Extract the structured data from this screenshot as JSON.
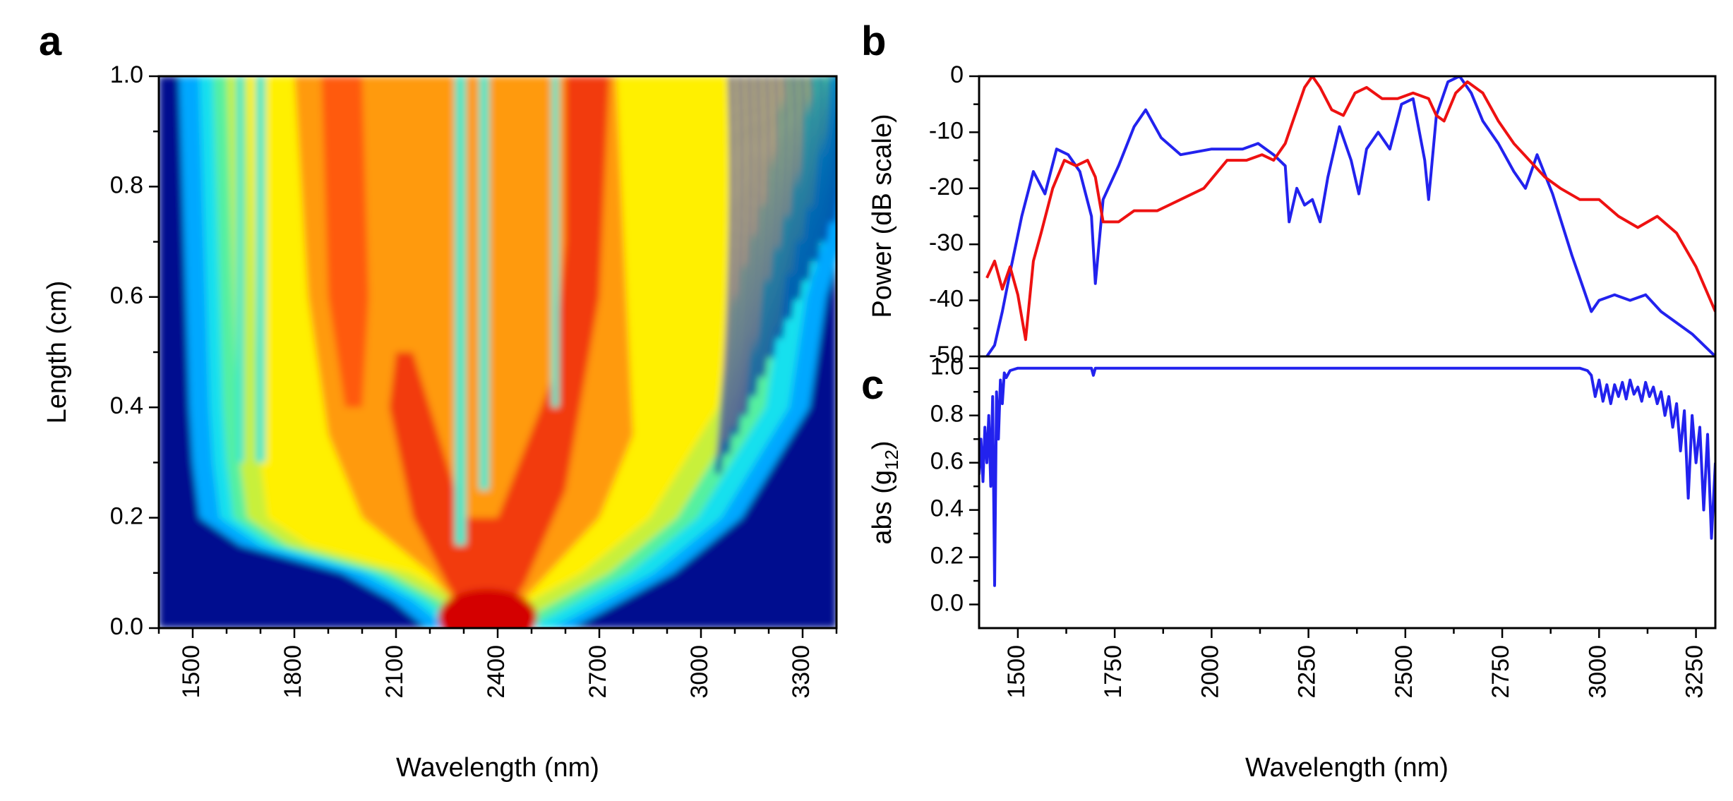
{
  "chart_data": [
    {
      "panel": "a",
      "type": "heatmap",
      "xlabel": "Wavelength (nm)",
      "ylabel": "Length (cm)",
      "xlim": [
        1400,
        3400
      ],
      "ylim": [
        0.0,
        1.0
      ],
      "xticks": [
        1500,
        1800,
        2100,
        2400,
        2700,
        3000,
        3300
      ],
      "yticks": [
        "0.0",
        "0.2",
        "0.4",
        "0.6",
        "0.8",
        "1.0"
      ],
      "colormap": "jet",
      "spectral_edges": {
        "length": [
          0.0,
          0.05,
          0.1,
          0.15,
          0.2,
          0.3,
          0.4,
          0.6,
          0.8,
          1.0
        ],
        "short_edge_nm": [
          2250,
          2150,
          2000,
          1700,
          1580,
          1560,
          1550,
          1540,
          1530,
          1520
        ],
        "long_edge_nm": [
          2500,
          2650,
          2800,
          2900,
          3000,
          3100,
          3200,
          3250,
          3350,
          3400
        ]
      }
    },
    {
      "panel": "b",
      "type": "line",
      "xlabel": "Wavelength (nm)",
      "ylabel": "Power (dB scale)",
      "xlim": [
        1400,
        3300
      ],
      "ylim": [
        -50,
        0
      ],
      "yticks": [
        "0",
        "-10",
        "-20",
        "-30",
        "-40",
        "-50"
      ],
      "series": [
        {
          "color": "#2222ee",
          "x": [
            1420,
            1440,
            1460,
            1480,
            1510,
            1540,
            1570,
            1600,
            1630,
            1660,
            1690,
            1700,
            1720,
            1760,
            1800,
            1830,
            1870,
            1920,
            2000,
            2080,
            2120,
            2160,
            2190,
            2200,
            2220,
            2240,
            2260,
            2280,
            2300,
            2330,
            2360,
            2380,
            2400,
            2430,
            2460,
            2490,
            2520,
            2550,
            2560,
            2580,
            2610,
            2640,
            2670,
            2700,
            2740,
            2780,
            2810,
            2840,
            2880,
            2930,
            2960,
            2980,
            3000,
            3040,
            3080,
            3120,
            3160,
            3200,
            3240,
            3270,
            3300
          ],
          "y": [
            -50,
            -48,
            -42,
            -35,
            -25,
            -17,
            -21,
            -13,
            -14,
            -17,
            -25,
            -37,
            -22,
            -16,
            -9,
            -6,
            -11,
            -14,
            -13,
            -13,
            -12,
            -14,
            -16,
            -26,
            -20,
            -23,
            -22,
            -26,
            -18,
            -9,
            -15,
            -21,
            -13,
            -10,
            -13,
            -5,
            -4,
            -15,
            -22,
            -7,
            -1,
            0,
            -3,
            -8,
            -12,
            -17,
            -20,
            -14,
            -21,
            -32,
            -38,
            -42,
            -40,
            -39,
            -40,
            -39,
            -42,
            -44,
            -46,
            -48,
            -50
          ]
        },
        {
          "color": "#ee1111",
          "x": [
            1420,
            1440,
            1460,
            1480,
            1500,
            1520,
            1540,
            1560,
            1590,
            1620,
            1650,
            1680,
            1700,
            1720,
            1760,
            1800,
            1860,
            1920,
            1980,
            2040,
            2090,
            2130,
            2160,
            2190,
            2210,
            2240,
            2260,
            2280,
            2310,
            2340,
            2370,
            2400,
            2440,
            2480,
            2520,
            2560,
            2580,
            2600,
            2630,
            2660,
            2700,
            2740,
            2780,
            2820,
            2860,
            2900,
            2950,
            3000,
            3050,
            3100,
            3150,
            3200,
            3250,
            3300
          ],
          "y": [
            -36,
            -33,
            -38,
            -34,
            -39,
            -47,
            -33,
            -28,
            -20,
            -15,
            -16,
            -15,
            -18,
            -26,
            -26,
            -24,
            -24,
            -22,
            -20,
            -15,
            -15,
            -14,
            -15,
            -12,
            -8,
            -2,
            0,
            -2,
            -6,
            -7,
            -3,
            -2,
            -4,
            -4,
            -3,
            -4,
            -7,
            -8,
            -3,
            -1,
            -3,
            -8,
            -12,
            -15,
            -18,
            -20,
            -22,
            -22,
            -25,
            -27,
            -25,
            -28,
            -34,
            -42
          ]
        }
      ]
    },
    {
      "panel": "c",
      "type": "line",
      "xlabel": "Wavelength (nm)",
      "ylabel": "abs (g",
      "ylabel_sub": "12",
      "ylabel_end": ")",
      "xlim": [
        1400,
        3300
      ],
      "ylim": [
        -0.1,
        1.05
      ],
      "xticks": [
        "1500",
        "1750",
        "2000",
        "2250",
        "2500",
        "2750",
        "3000",
        "3250"
      ],
      "yticks": [
        "0.0",
        "0.2",
        "0.4",
        "0.6",
        "0.8",
        "1.0"
      ],
      "series": [
        {
          "color": "#2222ee",
          "x": [
            1400,
            1405,
            1410,
            1415,
            1420,
            1425,
            1430,
            1435,
            1440,
            1445,
            1450,
            1455,
            1460,
            1465,
            1470,
            1480,
            1490,
            1500,
            1550,
            1690,
            1695,
            1700,
            1800,
            2000,
            2250,
            2500,
            2750,
            2950,
            2970,
            2980,
            2990,
            3000,
            3010,
            3020,
            3030,
            3040,
            3050,
            3060,
            3070,
            3080,
            3090,
            3100,
            3110,
            3120,
            3130,
            3140,
            3150,
            3160,
            3170,
            3180,
            3190,
            3200,
            3210,
            3220,
            3230,
            3240,
            3250,
            3260,
            3270,
            3280,
            3290,
            3300
          ],
          "y": [
            0.55,
            0.7,
            0.52,
            0.75,
            0.6,
            0.8,
            0.5,
            0.88,
            0.08,
            0.9,
            0.7,
            0.95,
            0.85,
            0.98,
            0.96,
            0.99,
            0.995,
            1.0,
            1.0,
            1.0,
            0.97,
            1.0,
            1.0,
            1.0,
            1.0,
            1.0,
            1.0,
            1.0,
            0.99,
            0.97,
            0.88,
            0.95,
            0.86,
            0.93,
            0.85,
            0.93,
            0.88,
            0.94,
            0.87,
            0.95,
            0.89,
            0.92,
            0.86,
            0.94,
            0.88,
            0.92,
            0.85,
            0.9,
            0.8,
            0.88,
            0.75,
            0.85,
            0.65,
            0.82,
            0.45,
            0.8,
            0.6,
            0.75,
            0.4,
            0.72,
            0.28,
            0.6
          ]
        }
      ]
    }
  ]
}
